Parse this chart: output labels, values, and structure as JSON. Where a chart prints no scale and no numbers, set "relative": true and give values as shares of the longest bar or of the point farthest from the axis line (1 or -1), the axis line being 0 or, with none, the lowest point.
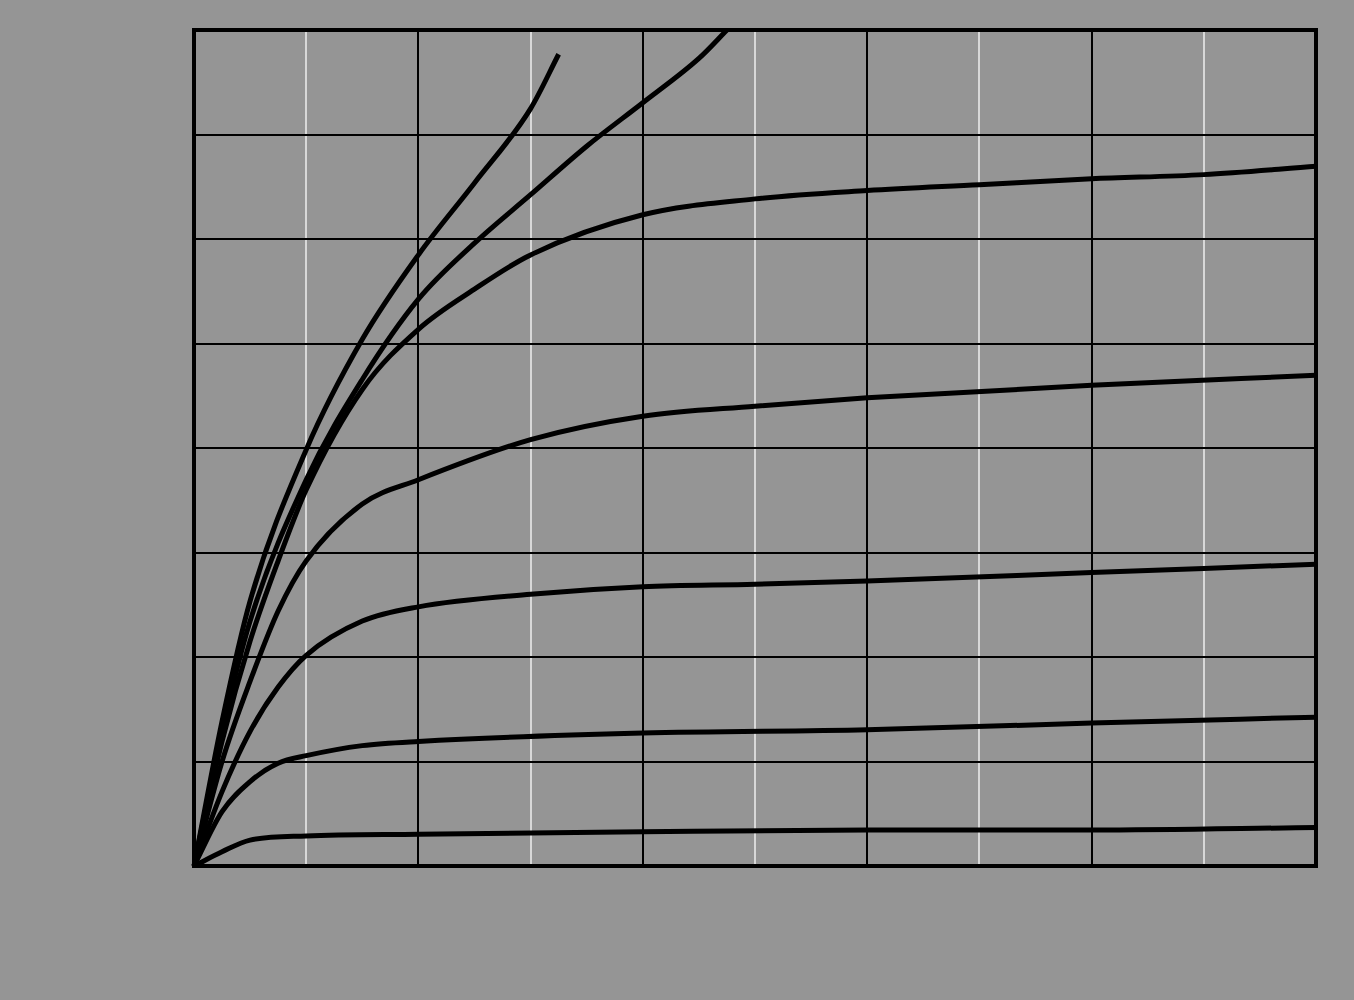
{
  "chart_data": {
    "type": "line",
    "relative": true,
    "grid": true,
    "line_style": "solid",
    "categories": [
      null,
      null,
      null,
      null,
      null,
      null,
      null,
      null,
      null,
      null,
      null,
      null,
      null,
      null,
      null,
      null,
      null,
      null,
      null,
      null,
      null,
      null,
      null,
      null,
      null,
      null,
      null,
      null,
      null,
      null,
      null,
      null,
      null,
      null,
      null,
      null,
      null,
      null,
      null,
      null,
      null
    ],
    "series": [
      {
        "color": "#000000",
        "values": [
          0,
          0.017,
          0.031,
          null,
          0.036,
          null,
          null,
          null,
          0.038,
          null,
          null,
          null,
          null,
          null,
          null,
          null,
          0.041,
          null,
          null,
          null,
          null,
          null,
          null,
          null,
          0.043,
          null,
          null,
          null,
          null,
          null,
          null,
          null,
          0.043,
          null,
          null,
          null,
          null,
          null,
          null,
          null,
          0.046
        ]
      },
      {
        "color": "#000000",
        "values": [
          0,
          0.065,
          0.101,
          0.123,
          0.132,
          null,
          0.144,
          null,
          0.149,
          null,
          null,
          null,
          null,
          null,
          null,
          null,
          0.159,
          null,
          null,
          null,
          null,
          null,
          null,
          null,
          0.163,
          null,
          null,
          null,
          null,
          null,
          null,
          null,
          0.171,
          null,
          null,
          null,
          null,
          null,
          null,
          null,
          0.178
        ]
      },
      {
        "color": "#000000",
        "values": [
          0,
          0.089,
          0.161,
          0.214,
          0.252,
          null,
          0.293,
          null,
          0.31,
          null,
          null,
          null,
          0.325,
          null,
          null,
          null,
          0.334,
          null,
          null,
          null,
          0.337,
          null,
          null,
          null,
          0.341,
          null,
          null,
          null,
          null,
          null,
          null,
          null,
          0.351,
          null,
          null,
          null,
          null,
          null,
          null,
          null,
          0.361
        ]
      },
      {
        "color": "#000000",
        "values": [
          0,
          0.125,
          0.221,
          0.305,
          0.365,
          null,
          0.433,
          null,
          0.462,
          null,
          null,
          null,
          0.51,
          null,
          null,
          null,
          0.538,
          null,
          null,
          null,
          0.55,
          null,
          null,
          null,
          0.56,
          null,
          null,
          null,
          null,
          null,
          null,
          null,
          0.575,
          null,
          null,
          null,
          null,
          null,
          null,
          null,
          0.587
        ]
      },
      {
        "color": "#000000",
        "values": [
          0,
          0.149,
          0.269,
          0.365,
          0.45,
          null,
          0.57,
          null,
          0.642,
          null,
          0.69,
          null,
          0.731,
          null,
          null,
          null,
          0.779,
          null,
          null,
          null,
          0.798,
          null,
          null,
          null,
          0.808,
          null,
          null,
          null,
          0.815,
          null,
          null,
          null,
          0.822,
          null,
          null,
          null,
          0.827,
          null,
          null,
          null,
          0.837
        ]
      },
      {
        "color": "#000000",
        "values": [
          0,
          0.161,
          0.293,
          null,
          0.462,
          null,
          0.582,
          null,
          0.678,
          null,
          0.745,
          null,
          0.803,
          null,
          0.861,
          null,
          0.913,
          null,
          0.966,
          1,
          null,
          null,
          null,
          null,
          null,
          null,
          null,
          null,
          null,
          null,
          null,
          null,
          null,
          null,
          null,
          null,
          null,
          null,
          null,
          null,
          null
        ]
      },
      {
        "color": "#000000",
        "values": [
          0,
          0.173,
          0.317,
          null,
          0.498,
          null,
          0.63,
          null,
          0.731,
          null,
          0.817,
          null,
          0.906,
          0.971,
          null,
          null,
          null,
          null,
          null,
          null,
          null,
          null,
          null,
          null,
          null,
          null,
          null,
          null,
          null,
          null,
          null,
          null,
          null,
          null,
          null,
          null,
          null,
          null,
          null,
          null,
          null
        ]
      }
    ]
  }
}
